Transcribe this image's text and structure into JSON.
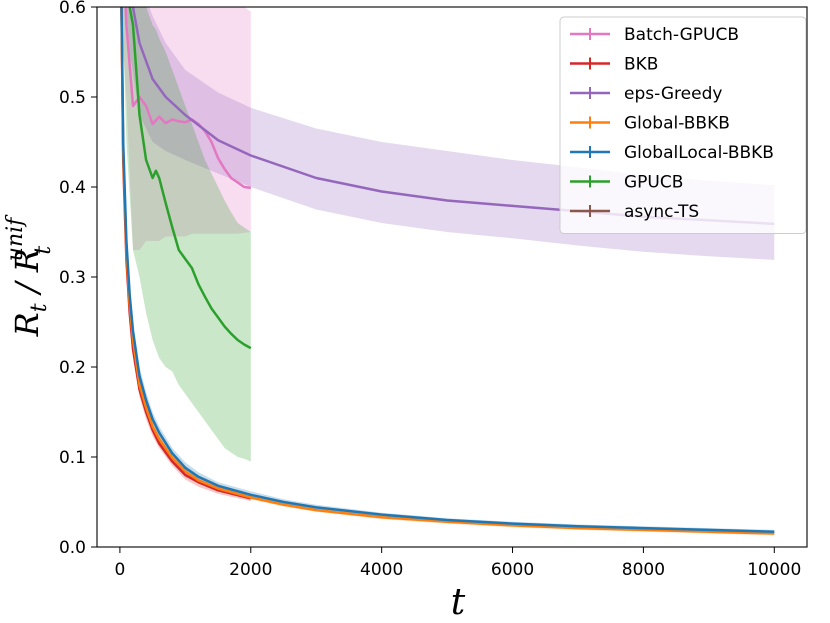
{
  "chart_data": {
    "type": "line",
    "xlabel": "t",
    "ylabel": "R_t / R_t^unif",
    "xlim": [
      -350,
      10500
    ],
    "ylim": [
      0.0,
      0.6
    ],
    "xticks": [
      0,
      2000,
      4000,
      6000,
      8000,
      10000
    ],
    "xtick_labels": [
      "0",
      "2000",
      "4000",
      "6000",
      "8000",
      "10000"
    ],
    "yticks": [
      0.0,
      0.1,
      0.2,
      0.3,
      0.4,
      0.5,
      0.6
    ],
    "ytick_labels": [
      "0.0",
      "0.1",
      "0.2",
      "0.3",
      "0.4",
      "0.5",
      "0.6"
    ],
    "grid": false,
    "legend_position": "top-right",
    "series": [
      {
        "name": "Batch-GPUCB",
        "color": "#e377c2",
        "x": [
          0,
          100,
          200,
          300,
          400,
          500,
          600,
          700,
          800,
          900,
          1000,
          1100,
          1200,
          1300,
          1400,
          1500,
          1600,
          1700,
          1800,
          1900,
          2000
        ],
        "y": [
          0.75,
          0.58,
          0.49,
          0.5,
          0.49,
          0.47,
          0.478,
          0.471,
          0.475,
          0.473,
          0.472,
          0.475,
          0.47,
          0.462,
          0.45,
          0.432,
          0.42,
          0.41,
          0.405,
          0.4,
          0.399
        ],
        "lower": [
          0.6,
          0.5,
          0.33,
          0.33,
          0.34,
          0.34,
          0.34,
          0.345,
          0.345,
          0.345,
          0.345,
          0.348,
          0.348,
          0.348,
          0.348,
          0.348,
          0.348,
          0.348,
          0.348,
          0.349,
          0.35
        ],
        "upper": [
          0.75,
          0.7,
          0.62,
          0.62,
          0.61,
          0.61,
          0.6,
          0.6,
          0.6,
          0.6,
          0.6,
          0.6,
          0.6,
          0.6,
          0.6,
          0.6,
          0.6,
          0.6,
          0.6,
          0.6,
          0.595
        ]
      },
      {
        "name": "BKB",
        "color": "#d62728",
        "x": [
          0,
          50,
          100,
          150,
          200,
          300,
          400,
          500,
          600,
          800,
          1000,
          1200,
          1500,
          2000
        ],
        "y": [
          0.75,
          0.43,
          0.32,
          0.26,
          0.22,
          0.175,
          0.15,
          0.13,
          0.115,
          0.095,
          0.08,
          0.072,
          0.063,
          0.054
        ],
        "lower": [
          0.75,
          0.42,
          0.31,
          0.25,
          0.21,
          0.167,
          0.142,
          0.123,
          0.11,
          0.09,
          0.075,
          0.067,
          0.059,
          0.051
        ],
        "upper": [
          0.75,
          0.44,
          0.33,
          0.27,
          0.23,
          0.183,
          0.158,
          0.137,
          0.12,
          0.1,
          0.085,
          0.077,
          0.067,
          0.057
        ]
      },
      {
        "name": "eps-Greedy",
        "color": "#9467bd",
        "x": [
          0,
          150,
          300,
          500,
          700,
          1000,
          1500,
          2000,
          3000,
          4000,
          5000,
          6000,
          7000,
          8000,
          9000,
          10000
        ],
        "y": [
          0.76,
          0.62,
          0.56,
          0.52,
          0.5,
          0.48,
          0.452,
          0.435,
          0.41,
          0.395,
          0.385,
          0.379,
          0.373,
          0.367,
          0.363,
          0.359
        ],
        "lower": [
          0.7,
          0.55,
          0.48,
          0.45,
          0.44,
          0.43,
          0.415,
          0.4,
          0.375,
          0.36,
          0.35,
          0.343,
          0.335,
          0.328,
          0.323,
          0.319
        ],
        "upper": [
          0.76,
          0.68,
          0.63,
          0.59,
          0.56,
          0.53,
          0.505,
          0.488,
          0.465,
          0.45,
          0.44,
          0.43,
          0.422,
          0.413,
          0.407,
          0.402
        ]
      },
      {
        "name": "Global-BBKB",
        "color": "#ff7f0e",
        "x": [
          0,
          50,
          100,
          150,
          200,
          300,
          400,
          500,
          600,
          800,
          1000,
          1200,
          1500,
          2000,
          2500,
          3000,
          4000,
          5000,
          6000,
          7000,
          8000,
          9000,
          10000
        ],
        "y": [
          0.75,
          0.44,
          0.33,
          0.27,
          0.23,
          0.18,
          0.155,
          0.134,
          0.12,
          0.099,
          0.084,
          0.074,
          0.065,
          0.055,
          0.047,
          0.041,
          0.033,
          0.028,
          0.024,
          0.021,
          0.019,
          0.017,
          0.015
        ],
        "lower": [
          0.75,
          0.43,
          0.32,
          0.26,
          0.22,
          0.173,
          0.148,
          0.128,
          0.115,
          0.095,
          0.08,
          0.071,
          0.062,
          0.053,
          0.045,
          0.039,
          0.031,
          0.026,
          0.022,
          0.019,
          0.017,
          0.015,
          0.013
        ],
        "upper": [
          0.75,
          0.45,
          0.34,
          0.28,
          0.24,
          0.188,
          0.162,
          0.14,
          0.125,
          0.103,
          0.088,
          0.077,
          0.068,
          0.057,
          0.049,
          0.043,
          0.035,
          0.03,
          0.026,
          0.023,
          0.021,
          0.019,
          0.017
        ]
      },
      {
        "name": "GlobalLocal-BBKB",
        "color": "#1f77b4",
        "x": [
          0,
          50,
          100,
          150,
          200,
          300,
          400,
          500,
          600,
          800,
          1000,
          1200,
          1500,
          2000,
          2500,
          3000,
          4000,
          5000,
          6000,
          7000,
          8000,
          9000,
          10000
        ],
        "y": [
          0.75,
          0.45,
          0.34,
          0.28,
          0.24,
          0.19,
          0.163,
          0.142,
          0.127,
          0.104,
          0.088,
          0.078,
          0.068,
          0.058,
          0.05,
          0.044,
          0.036,
          0.03,
          0.026,
          0.023,
          0.021,
          0.019,
          0.017
        ],
        "lower": [
          0.75,
          0.44,
          0.33,
          0.27,
          0.23,
          0.183,
          0.156,
          0.136,
          0.121,
          0.099,
          0.083,
          0.074,
          0.064,
          0.054,
          0.047,
          0.041,
          0.034,
          0.028,
          0.024,
          0.021,
          0.019,
          0.017,
          0.015
        ],
        "upper": [
          0.75,
          0.46,
          0.35,
          0.29,
          0.25,
          0.2,
          0.172,
          0.15,
          0.134,
          0.11,
          0.094,
          0.083,
          0.072,
          0.062,
          0.053,
          0.047,
          0.038,
          0.032,
          0.028,
          0.025,
          0.023,
          0.021,
          0.019
        ]
      },
      {
        "name": "GPUCB",
        "color": "#2ca02c",
        "x": [
          0,
          100,
          200,
          300,
          400,
          500,
          550,
          600,
          700,
          800,
          900,
          1000,
          1100,
          1200,
          1300,
          1400,
          1500,
          1600,
          1700,
          1800,
          1900,
          2000
        ],
        "y": [
          0.75,
          0.62,
          0.58,
          0.48,
          0.43,
          0.41,
          0.418,
          0.41,
          0.382,
          0.355,
          0.33,
          0.32,
          0.31,
          0.292,
          0.278,
          0.265,
          0.255,
          0.245,
          0.237,
          0.23,
          0.225,
          0.221
        ],
        "lower": [
          0.7,
          0.45,
          0.33,
          0.3,
          0.26,
          0.23,
          0.22,
          0.21,
          0.2,
          0.195,
          0.18,
          0.17,
          0.16,
          0.15,
          0.14,
          0.13,
          0.12,
          0.11,
          0.105,
          0.1,
          0.098,
          0.095
        ],
        "upper": [
          0.75,
          0.75,
          0.7,
          0.62,
          0.6,
          0.58,
          0.575,
          0.565,
          0.55,
          0.53,
          0.51,
          0.49,
          0.47,
          0.45,
          0.43,
          0.415,
          0.4,
          0.385,
          0.372,
          0.36,
          0.355,
          0.35
        ]
      },
      {
        "name": "async-TS",
        "color": "#8c564b",
        "x": [],
        "y": [],
        "lower": [],
        "upper": []
      }
    ]
  }
}
